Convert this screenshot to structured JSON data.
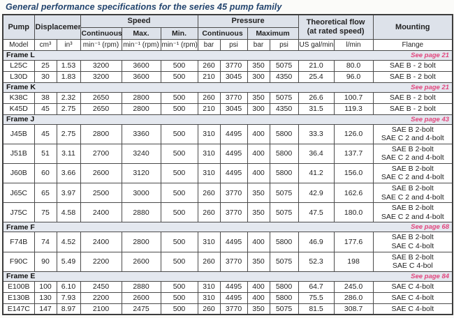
{
  "title": "General performance specifications for the series 45 pump family",
  "colors": {
    "title_blue": "#21436d",
    "see_page_pink": "#e2467d",
    "header_bg": "#dde2ea",
    "section_bg": "#e4e8ef",
    "border": "#4b4b4b"
  },
  "table": {
    "header": {
      "pump": "Pump",
      "displacement": "Displacement",
      "speed": "Speed",
      "speed_continuous": "Continuous",
      "speed_max": "Max.",
      "speed_min": "Min.",
      "pressure": "Pressure",
      "pressure_continuous": "Continuous",
      "pressure_maximum": "Maximum",
      "flow_line1": "Theoretical flow",
      "flow_line2": "(at rated speed)",
      "mounting": "Mounting"
    },
    "units": {
      "model": "Model",
      "cm3": "cm³",
      "in3": "in³",
      "rpm": "min⁻¹ (rpm)",
      "bar": "bar",
      "psi": "psi",
      "us_gal_min": "US gal/min",
      "l_min": "l/min",
      "flange": "Flange"
    },
    "sections": [
      {
        "name": "Frame L",
        "see_page": "See page 21",
        "rows": [
          {
            "cells": [
              "L25C",
              "25",
              "1.53",
              "3200",
              "3600",
              "500",
              "260",
              "3770",
              "350",
              "5075",
              "21.0",
              "80.0"
            ],
            "mounting": [
              "SAE B - 2 bolt"
            ]
          },
          {
            "cells": [
              "L30D",
              "30",
              "1.83",
              "3200",
              "3600",
              "500",
              "210",
              "3045",
              "300",
              "4350",
              "25.4",
              "96.0"
            ],
            "mounting": [
              "SAE B - 2 bolt"
            ]
          }
        ]
      },
      {
        "name": "Frame K",
        "see_page": "See page 21",
        "rows": [
          {
            "cells": [
              "K38C",
              "38",
              "2.32",
              "2650",
              "2800",
              "500",
              "260",
              "3770",
              "350",
              "5075",
              "26.6",
              "100.7"
            ],
            "mounting": [
              "SAE B - 2 bolt"
            ]
          },
          {
            "cells": [
              "K45D",
              "45",
              "2.75",
              "2650",
              "2800",
              "500",
              "210",
              "3045",
              "300",
              "4350",
              "31.5",
              "119.3"
            ],
            "mounting": [
              "SAE B - 2 bolt"
            ]
          }
        ]
      },
      {
        "name": "Frame J",
        "see_page": "See page 43",
        "rows": [
          {
            "cells": [
              "J45B",
              "45",
              "2.75",
              "2800",
              "3360",
              "500",
              "310",
              "4495",
              "400",
              "5800",
              "33.3",
              "126.0"
            ],
            "mounting": [
              "SAE B 2-bolt",
              "SAE C 2 and 4-bolt"
            ]
          },
          {
            "cells": [
              "J51B",
              "51",
              "3.11",
              "2700",
              "3240",
              "500",
              "310",
              "4495",
              "400",
              "5800",
              "36.4",
              "137.7"
            ],
            "mounting": [
              "SAE B 2-bolt",
              "SAE C 2 and 4-bolt"
            ]
          },
          {
            "cells": [
              "J60B",
              "60",
              "3.66",
              "2600",
              "3120",
              "500",
              "310",
              "4495",
              "400",
              "5800",
              "41.2",
              "156.0"
            ],
            "mounting": [
              "SAE B 2-bolt",
              "SAE C 2 and 4-bolt"
            ]
          },
          {
            "cells": [
              "J65C",
              "65",
              "3.97",
              "2500",
              "3000",
              "500",
              "260",
              "3770",
              "350",
              "5075",
              "42.9",
              "162.6"
            ],
            "mounting": [
              "SAE B 2-bolt",
              "SAE C 2 and 4-bolt"
            ]
          },
          {
            "cells": [
              "J75C",
              "75",
              "4.58",
              "2400",
              "2880",
              "500",
              "260",
              "3770",
              "350",
              "5075",
              "47.5",
              "180.0"
            ],
            "mounting": [
              "SAE B 2-bolt",
              "SAE C 2 and 4-bolt"
            ]
          }
        ]
      },
      {
        "name": "Frame F",
        "see_page": "See page 68",
        "rows": [
          {
            "cells": [
              "F74B",
              "74",
              "4.52",
              "2400",
              "2800",
              "500",
              "310",
              "4495",
              "400",
              "5800",
              "46.9",
              "177.6"
            ],
            "mounting": [
              "SAE B 2-bolt",
              "SAE C 4-bolt"
            ]
          },
          {
            "cells": [
              "F90C",
              "90",
              "5.49",
              "2200",
              "2600",
              "500",
              "260",
              "3770",
              "350",
              "5075",
              "52.3",
              "198"
            ],
            "mounting": [
              "SAE B 2-bolt",
              "SAE C 4-bol"
            ]
          }
        ]
      },
      {
        "name": "Frame E",
        "see_page": "See page 84",
        "rows": [
          {
            "cells": [
              "E100B",
              "100",
              "6.10",
              "2450",
              "2880",
              "500",
              "310",
              "4495",
              "400",
              "5800",
              "64.7",
              "245.0"
            ],
            "mounting": [
              "SAE C 4-bolt"
            ]
          },
          {
            "cells": [
              "E130B",
              "130",
              "7.93",
              "2200",
              "2600",
              "500",
              "310",
              "4495",
              "400",
              "5800",
              "75.5",
              "286.0"
            ],
            "mounting": [
              "SAE C 4-bolt"
            ]
          },
          {
            "cells": [
              "E147C",
              "147",
              "8.97",
              "2100",
              "2475",
              "500",
              "260",
              "3770",
              "350",
              "5075",
              "81.5",
              "308.7"
            ],
            "mounting": [
              "SAE C 4-bolt"
            ]
          }
        ]
      }
    ]
  }
}
